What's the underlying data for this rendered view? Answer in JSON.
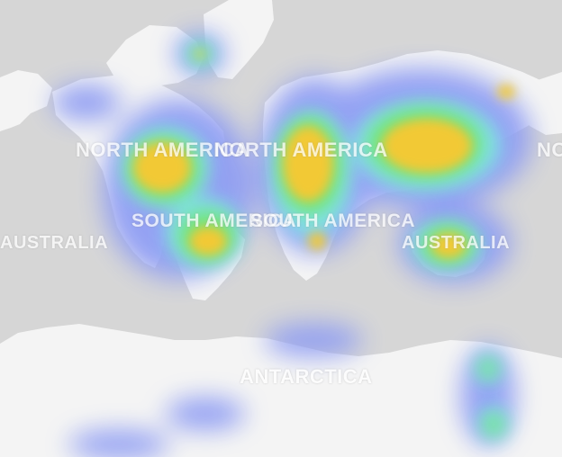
{
  "map": {
    "colors": {
      "ocean": "#d6d6d6",
      "land": "#f4f4f4",
      "heat_low": "#8f9df3",
      "heat_mid": "#7fe6e6",
      "heat_mid2": "#6fe56f",
      "heat_high": "#f2c935"
    },
    "labels": {
      "north_america_left": "NORTH AMERICA",
      "north_america_mid": "NORTH AMERICA",
      "north_america_right": "NORTH AMERICA",
      "south_america_left": "SOUTH AMERICA",
      "south_america_mid": "SOUTH AMERICA",
      "australia_left": "AUSTRALIA",
      "australia_mid": "AUSTRALIA",
      "antarctica": "ANTARCTICA"
    }
  }
}
